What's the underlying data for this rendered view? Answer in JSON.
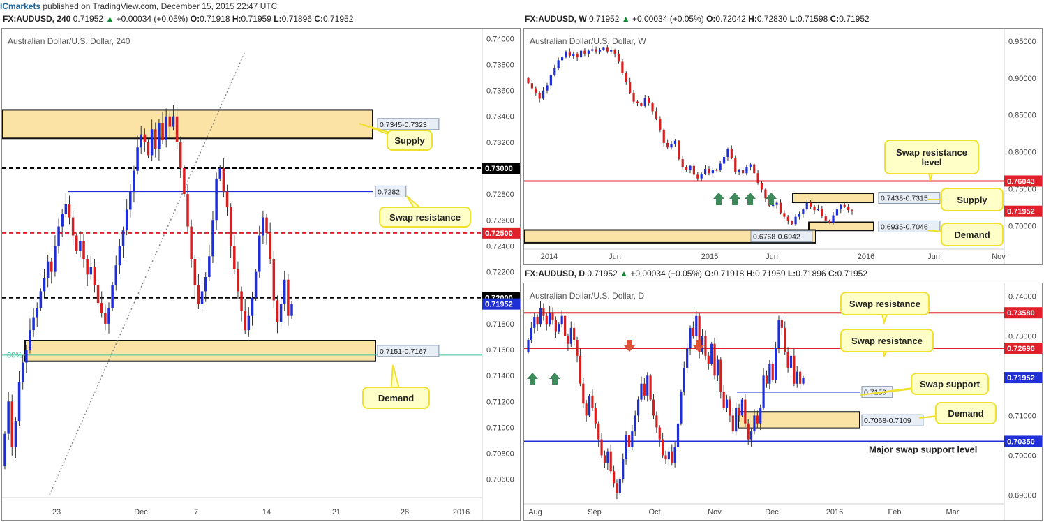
{
  "topbar": {
    "brand": "ICmarkets",
    "text": "published on TradingView.com, December 15, 2015 22:47 UTC"
  },
  "colors": {
    "bull": "#1f2fd6",
    "bear": "#d61f1f",
    "zone_fill": "#fbe3a6",
    "callout_fill": "#ffffc8",
    "callout_border": "#f0e030",
    "red_level": "#e0202a",
    "blue_level": "#1f2fd6",
    "green_arrow": "#3e8a5a",
    "red_arrow": "#d9533a"
  },
  "chart_data": [
    {
      "id": "h4",
      "type": "candlestick",
      "header": {
        "symbol": "FX:AUDUSD, 240",
        "price": "0.71952",
        "change": "+0.00034 (+0.05%)",
        "open": "0.71918",
        "high": "0.71959",
        "low": "0.71896",
        "close": "0.71952"
      },
      "title": "Australian Dollar/U.S. Dollar, 240",
      "ylim": [
        0.7048,
        0.7405
      ],
      "x_ticks": [
        "23",
        "Dec",
        "7",
        "14",
        "21",
        "28",
        "2016"
      ],
      "y_ticks": [
        "0.74000",
        "0.73800",
        "0.73600",
        "0.73400",
        "0.73200",
        "0.72800",
        "0.72600",
        "0.72400",
        "0.72200",
        "0.71800",
        "0.71600",
        "0.71400",
        "0.71200",
        "0.71000",
        "0.70800",
        "0.70600"
      ],
      "price_tags": [
        {
          "text": "0.73000",
          "value": 0.73,
          "style": "black"
        },
        {
          "text": "0.72500",
          "value": 0.725,
          "style": "red"
        },
        {
          "text": "0.72000",
          "value": 0.72,
          "style": "black"
        },
        {
          "text": "0.71952",
          "value": 0.71952,
          "style": "blue"
        }
      ],
      "levels": [
        {
          "value": 0.73,
          "style": "black-dashed"
        },
        {
          "value": 0.725,
          "style": "red-dashed"
        },
        {
          "value": 0.72,
          "style": "black-dashed"
        },
        {
          "value": 0.7282,
          "style": "blue"
        },
        {
          "value": 0.7156,
          "style": "teal"
        }
      ],
      "zones": [
        {
          "low": 0.7323,
          "high": 0.7345,
          "label": "0.7345-0.7323"
        },
        {
          "low": 0.7151,
          "high": 0.7167,
          "label": "0.7151-0.7167"
        }
      ],
      "label_0282": "0.7282",
      "fib_label": ".80%",
      "callouts": [
        "Supply",
        "Swap resistance",
        "Demand"
      ],
      "trendline": {
        "from": 0.7048,
        "to": 0.739
      },
      "closes": [
        0.7095,
        0.712,
        0.7085,
        0.7105,
        0.7135,
        0.715,
        0.716,
        0.7175,
        0.7185,
        0.7192,
        0.7205,
        0.7215,
        0.7228,
        0.722,
        0.724,
        0.7255,
        0.7265,
        0.7272,
        0.7262,
        0.7248,
        0.7236,
        0.7244,
        0.723,
        0.7218,
        0.7224,
        0.721,
        0.7196,
        0.7188,
        0.718,
        0.7192,
        0.721,
        0.7225,
        0.724,
        0.7252,
        0.7268,
        0.7282,
        0.7298,
        0.7316,
        0.7326,
        0.732,
        0.731,
        0.733,
        0.7315,
        0.7335,
        0.7322,
        0.734,
        0.7332,
        0.734,
        0.732,
        0.73,
        0.728,
        0.7255,
        0.723,
        0.721,
        0.7195,
        0.7205,
        0.7216,
        0.7232,
        0.726,
        0.7292,
        0.73,
        0.7282,
        0.727,
        0.724,
        0.7222,
        0.7205,
        0.719,
        0.7175,
        0.7186,
        0.72,
        0.722,
        0.7248,
        0.7262,
        0.725,
        0.723,
        0.7198,
        0.7181,
        0.7195,
        0.7214,
        0.7186,
        0.7195
      ]
    },
    {
      "id": "weekly",
      "type": "candlestick",
      "header": {
        "symbol": "FX:AUDUSD, W",
        "price": "0.71952",
        "change": "+0.00034 (+0.05%)",
        "open": "0.72042",
        "high": "0.72830",
        "low": "0.71598",
        "close": "0.71952"
      },
      "title": "Australian Dollar/U.S. Dollar, W",
      "ylim": [
        0.672,
        0.965
      ],
      "x_ticks": [
        "2014",
        "Jun",
        "2015",
        "Jun",
        "2016",
        "Jun",
        "Nov"
      ],
      "y_ticks": [
        "0.95000",
        "0.90000",
        "0.85000",
        "0.80000",
        "0.75000",
        "0.70000"
      ],
      "price_tags": [
        {
          "text": "0.76043",
          "value": 0.76043,
          "style": "red"
        },
        {
          "text": "0.71952",
          "value": 0.71952,
          "style": "red"
        }
      ],
      "levels": [
        {
          "value": 0.76043,
          "style": "red"
        }
      ],
      "zones": [
        {
          "low": 0.7315,
          "high": 0.7438,
          "label": "0.7438-0.7315"
        },
        {
          "low": 0.6935,
          "high": 0.7046,
          "label": "0.6935-0.7046"
        },
        {
          "low": 0.6768,
          "high": 0.6942,
          "label": "0.6768-0.6942"
        }
      ],
      "callouts": [
        "Swap resistance level",
        "Supply",
        "Demand"
      ],
      "closes": [
        0.893,
        0.886,
        0.88,
        0.872,
        0.883,
        0.89,
        0.904,
        0.913,
        0.924,
        0.928,
        0.936,
        0.93,
        0.933,
        0.928,
        0.937,
        0.933,
        0.937,
        0.939,
        0.936,
        0.938,
        0.941,
        0.936,
        0.938,
        0.933,
        0.922,
        0.907,
        0.895,
        0.88,
        0.868,
        0.866,
        0.862,
        0.873,
        0.866,
        0.855,
        0.845,
        0.83,
        0.812,
        0.806,
        0.811,
        0.815,
        0.79,
        0.779,
        0.776,
        0.781,
        0.769,
        0.764,
        0.77,
        0.777,
        0.771,
        0.776,
        0.775,
        0.784,
        0.793,
        0.804,
        0.792,
        0.773,
        0.775,
        0.771,
        0.779,
        0.783,
        0.771,
        0.758,
        0.749,
        0.737,
        0.727,
        0.728,
        0.731,
        0.717,
        0.712,
        0.706,
        0.702,
        0.712,
        0.716,
        0.722,
        0.731,
        0.726,
        0.721,
        0.723,
        0.713,
        0.707,
        0.704,
        0.714,
        0.722,
        0.728,
        0.726,
        0.721,
        0.7195
      ]
    },
    {
      "id": "daily",
      "type": "candlestick",
      "header": {
        "symbol": "FX:AUDUSD, D",
        "price": "0.71952",
        "change": "+0.00034 (+0.05%)",
        "open": "0.71918",
        "high": "0.71959",
        "low": "0.71896",
        "close": "0.71952"
      },
      "title": "Australian Dollar/U.S. Dollar, D",
      "ylim": [
        0.6885,
        0.7425
      ],
      "x_ticks": [
        "Aug",
        "Sep",
        "Oct",
        "Nov",
        "Dec",
        "2016",
        "Feb",
        "Mar"
      ],
      "y_ticks": [
        "0.74000",
        "0.73000",
        "0.72000",
        "0.71000",
        "0.70000",
        "0.69000"
      ],
      "price_tags": [
        {
          "text": "0.73580",
          "value": 0.7358,
          "style": "red"
        },
        {
          "text": "0.72690",
          "value": 0.7269,
          "style": "red"
        },
        {
          "text": "0.71952",
          "value": 0.71952,
          "style": "blue"
        },
        {
          "text": "0.70350",
          "value": 0.7035,
          "style": "blue"
        }
      ],
      "levels": [
        {
          "value": 0.7358,
          "style": "red"
        },
        {
          "value": 0.7269,
          "style": "red"
        },
        {
          "value": 0.7035,
          "style": "blue"
        },
        {
          "value": 0.7159,
          "style": "blue-short"
        }
      ],
      "zones": [
        {
          "low": 0.7068,
          "high": 0.7109,
          "label": "0.7068-0.7109"
        }
      ],
      "label_7159": "0.7159",
      "callouts": [
        "Swap resistance",
        "Swap resistance",
        "Swap support",
        "Demand"
      ],
      "major_label": "Major swap support level",
      "closes": [
        0.729,
        0.732,
        0.7348,
        0.733,
        0.737,
        0.735,
        0.733,
        0.7358,
        0.734,
        0.731,
        0.733,
        0.735,
        0.73,
        0.728,
        0.732,
        0.729,
        0.725,
        0.718,
        0.713,
        0.71,
        0.715,
        0.712,
        0.708,
        0.704,
        0.7,
        0.698,
        0.701,
        0.696,
        0.693,
        0.6905,
        0.694,
        0.699,
        0.705,
        0.702,
        0.706,
        0.71,
        0.714,
        0.718,
        0.715,
        0.72,
        0.714,
        0.71,
        0.707,
        0.704,
        0.7,
        0.699,
        0.701,
        0.698,
        0.702,
        0.708,
        0.716,
        0.722,
        0.727,
        0.732,
        0.73,
        0.735,
        0.726,
        0.73,
        0.725,
        0.723,
        0.728,
        0.72,
        0.724,
        0.716,
        0.712,
        0.714,
        0.71,
        0.706,
        0.712,
        0.71,
        0.714,
        0.708,
        0.704,
        0.706,
        0.71,
        0.708,
        0.712,
        0.72,
        0.718,
        0.723,
        0.719,
        0.727,
        0.734,
        0.732,
        0.726,
        0.722,
        0.725,
        0.718,
        0.721,
        0.718,
        0.7195
      ]
    }
  ]
}
